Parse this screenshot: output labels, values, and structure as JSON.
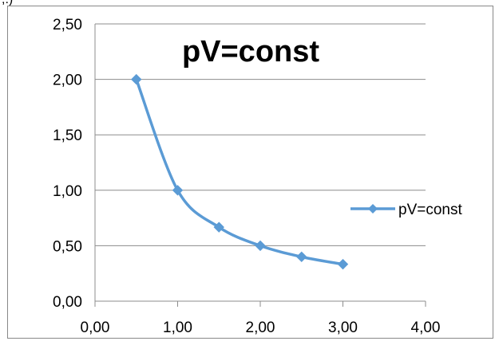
{
  "top_fragment": ",.)",
  "chart_data": {
    "type": "scatter",
    "title": "pV=const",
    "xlabel": "",
    "ylabel": "",
    "xlim": [
      0,
      4
    ],
    "ylim": [
      0,
      2.5
    ],
    "x_ticks": [
      "0,00",
      "1,00",
      "2,00",
      "3,00",
      "4,00"
    ],
    "y_ticks": [
      "0,00",
      "0,50",
      "1,00",
      "1,50",
      "2,00",
      "2,50"
    ],
    "grid": "horizontal",
    "legend": "right",
    "series": [
      {
        "name": "pV=const",
        "color": "#5b9bd5",
        "marker": "diamond",
        "smooth": true,
        "x": [
          0.5,
          1.0,
          1.5,
          2.0,
          2.5,
          3.0
        ],
        "y": [
          2.0,
          1.0,
          0.667,
          0.5,
          0.4,
          0.333
        ]
      }
    ]
  }
}
